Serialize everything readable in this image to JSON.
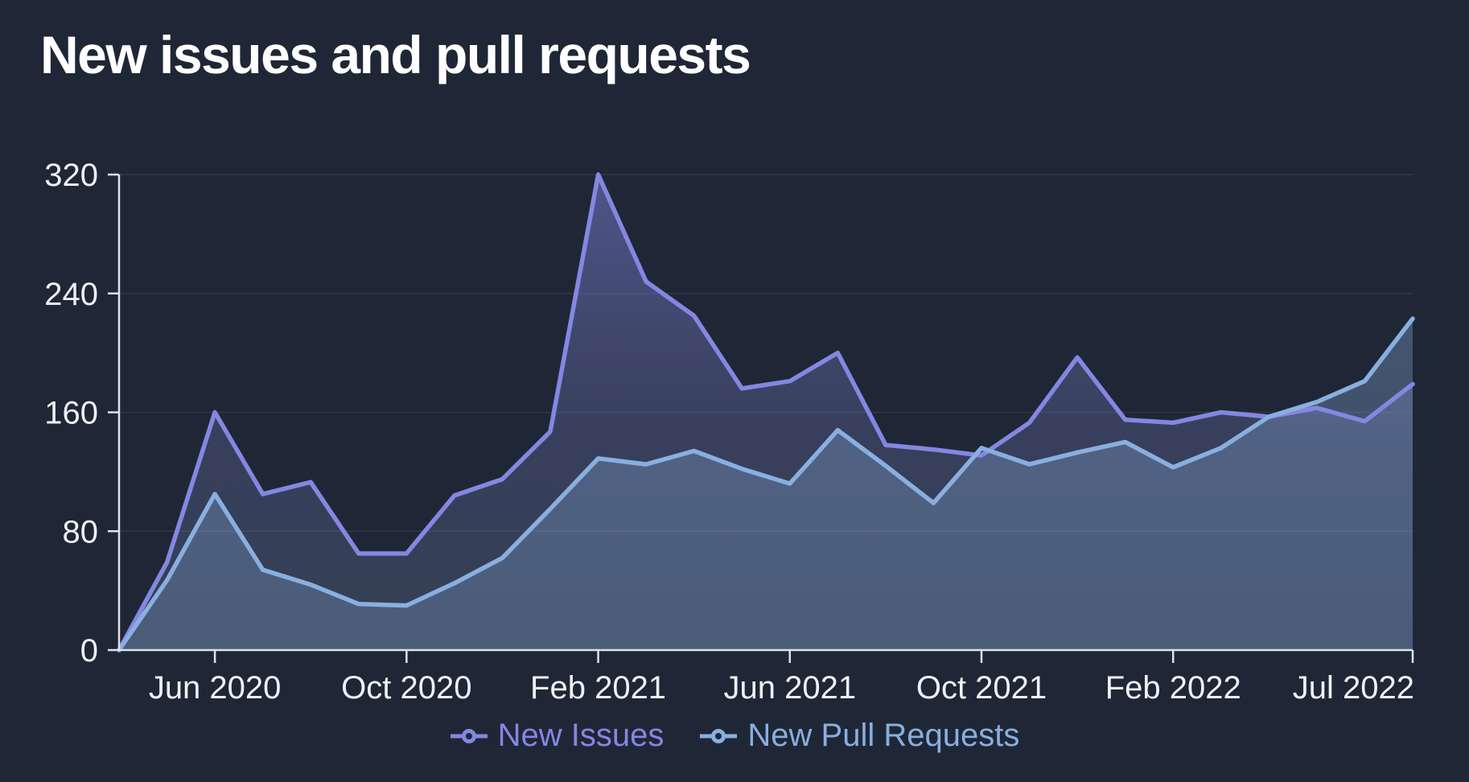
{
  "page": {
    "background_color": "#1f2736",
    "text_color": "#eef1f6",
    "grid_color": "rgba(255,255,255,0.08)",
    "axis_color": "#dde2ea"
  },
  "header": {
    "title": "New issues and pull requests"
  },
  "chart_data": {
    "type": "area",
    "title": "New issues and pull requests",
    "xlabel": "",
    "ylabel": "",
    "ylim": [
      0,
      320
    ],
    "yticks": [
      0,
      80,
      160,
      240,
      320
    ],
    "grid": true,
    "legend_position": "bottom",
    "x": [
      "Apr 2020",
      "May 2020",
      "Jun 2020",
      "Jul 2020",
      "Aug 2020",
      "Sep 2020",
      "Oct 2020",
      "Nov 2020",
      "Dec 2020",
      "Jan 2021",
      "Feb 2021",
      "Mar 2021",
      "Apr 2021",
      "May 2021",
      "Jun 2021",
      "Jul 2021",
      "Aug 2021",
      "Sep 2021",
      "Oct 2021",
      "Nov 2021",
      "Dec 2021",
      "Jan 2022",
      "Feb 2022",
      "Mar 2022",
      "Apr 2022",
      "May 2022",
      "Jun 2022",
      "Jul 2022"
    ],
    "x_tick_labels": [
      "Jun 2020",
      "Oct 2020",
      "Feb 2021",
      "Jun 2021",
      "Oct 2021",
      "Feb 2022",
      "Jul 2022"
    ],
    "x_tick_indices": [
      2,
      6,
      10,
      14,
      18,
      22,
      27
    ],
    "series": [
      {
        "name": "New Issues",
        "color": "#8487e2",
        "values": [
          0,
          59,
          160,
          105,
          113,
          65,
          65,
          104,
          115,
          147,
          320,
          248,
          225,
          176,
          181,
          200,
          138,
          135,
          131,
          153,
          197,
          155,
          153,
          160,
          157,
          163,
          154,
          179
        ]
      },
      {
        "name": "New Pull Requests",
        "color": "#89afdf",
        "values": [
          0,
          47,
          105,
          54,
          44,
          31,
          30,
          45,
          62,
          95,
          129,
          125,
          134,
          122,
          112,
          148,
          124,
          99,
          136,
          125,
          133,
          140,
          123,
          136,
          157,
          167,
          181,
          223
        ]
      }
    ]
  }
}
